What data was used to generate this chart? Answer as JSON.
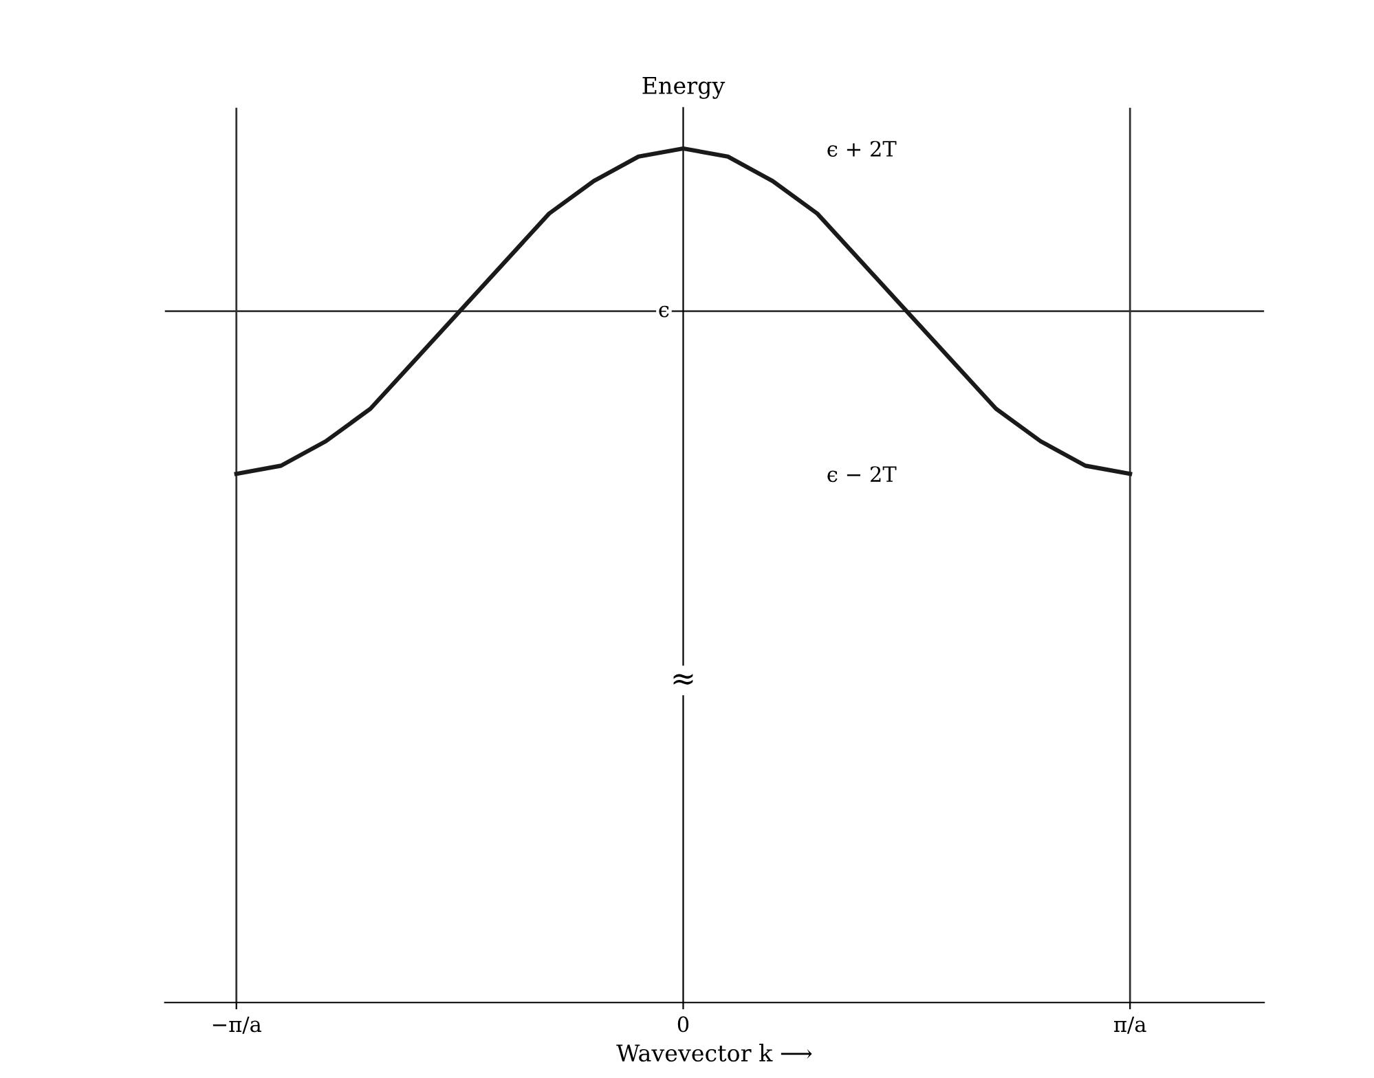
{
  "chart_data": {
    "type": "line",
    "xlabel": "Wavevector k ⟶",
    "ylabel": "Energy",
    "categories": [
      "−π/a",
      null,
      null,
      null,
      null,
      null,
      null,
      null,
      null,
      null,
      "0",
      null,
      null,
      null,
      null,
      null,
      null,
      null,
      null,
      null,
      "π/a"
    ],
    "series": [
      {
        "color": "#1a1a1a",
        "values": [
          -2,
          -1.9,
          -1.6,
          -1.2,
          -0.6,
          0,
          0.6,
          1.2,
          1.6,
          1.9,
          2,
          1.9,
          1.6,
          1.2,
          0.6,
          0,
          -0.6,
          -1.2,
          -1.6,
          -1.9,
          -2
        ]
      }
    ],
    "ylim": [
      -8.5,
      2.5
    ],
    "yticks": [
      {
        "value": -2,
        "label": "ϵ − 2T"
      },
      {
        "value": 2,
        "label": "ϵ + 2T"
      }
    ],
    "ref_lines": [
      {
        "axis": "y",
        "value": 0,
        "label": "ϵ",
        "color": "#333333"
      },
      {
        "axis": "x",
        "value": "−π/a",
        "color": "#333333"
      },
      {
        "axis": "x",
        "value": "π/a",
        "color": "#333333"
      }
    ],
    "annotations": [
      "≈"
    ],
    "grid": false,
    "legend": false,
    "line_style": "solid",
    "marker": "none"
  }
}
